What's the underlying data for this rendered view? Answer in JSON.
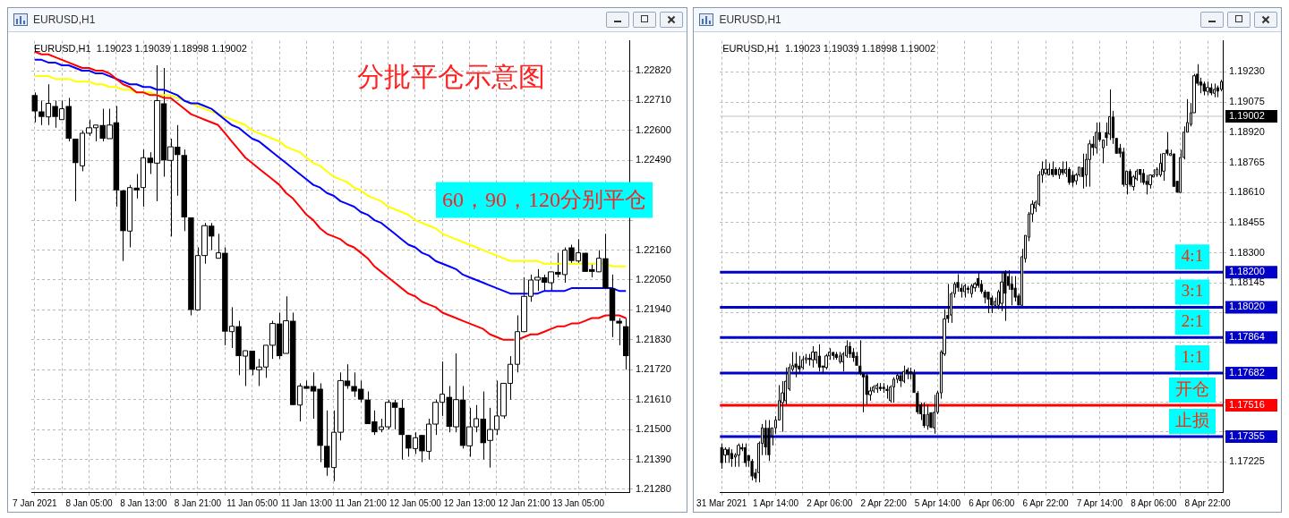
{
  "chart_data": [
    {
      "type": "candlestick",
      "title": "EURUSD,H1",
      "categories": [
        "7 Jan 2021",
        null,
        null,
        null,
        null,
        null,
        null,
        null,
        "8 Jan 05:00",
        null,
        null,
        null,
        null,
        null,
        null,
        null,
        "8 Jan 13:00",
        null,
        null,
        null,
        null,
        null,
        null,
        null,
        "8 Jan 21:00",
        null,
        null,
        null,
        null,
        null,
        null,
        null,
        "11 Jan 05:00",
        null,
        null,
        null,
        null,
        null,
        null,
        null,
        "11 Jan 13:00",
        null,
        null,
        null,
        null,
        null,
        null,
        null,
        "11 Jan 21:00",
        null,
        null,
        null,
        null,
        null,
        null,
        null,
        "12 Jan 05:00",
        null,
        null,
        null,
        null,
        null,
        null,
        null,
        "12 Jan 13:00",
        null,
        null,
        null,
        null,
        null,
        null,
        null,
        "12 Jan 21:00",
        null,
        null,
        null,
        null,
        null,
        null,
        null,
        "13 Jan 05:00",
        null,
        null,
        null,
        null,
        null,
        null,
        null
      ],
      "ohlc": [
        [
          1.2273,
          1.2274,
          1.2263,
          1.2267
        ],
        [
          1.2267,
          1.2271,
          1.2262,
          1.2265
        ],
        [
          1.2265,
          1.2277,
          1.2262,
          1.227
        ],
        [
          1.2269,
          1.2271,
          1.2261,
          1.2265
        ],
        [
          1.2264,
          1.2271,
          1.2264,
          1.2268
        ],
        [
          1.2269,
          1.2272,
          1.2256,
          1.2257
        ],
        [
          1.2257,
          1.2257,
          1.2234,
          1.2248
        ],
        [
          1.2247,
          1.226,
          1.2245,
          1.2259
        ],
        [
          1.2259,
          1.2264,
          1.2258,
          1.2261
        ],
        [
          1.2261,
          1.2262,
          1.2256,
          1.2262
        ],
        [
          1.2262,
          1.2268,
          1.2256,
          1.2257
        ],
        [
          1.2257,
          1.2268,
          1.2257,
          1.2262
        ],
        [
          1.2263,
          1.2269,
          1.2232,
          1.2238
        ],
        [
          1.2238,
          1.2238,
          1.2212,
          1.2223
        ],
        [
          1.2223,
          1.224,
          1.2217,
          1.2239
        ],
        [
          1.2239,
          1.2244,
          1.2235,
          1.2238
        ],
        [
          1.2239,
          1.2253,
          1.2232,
          1.225
        ],
        [
          1.225,
          1.2252,
          1.2244,
          1.2248
        ],
        [
          1.2248,
          1.2284,
          1.2234,
          1.2271
        ],
        [
          1.227,
          1.2283,
          1.2243,
          1.2249
        ],
        [
          1.2249,
          1.2257,
          1.2221,
          1.2254
        ],
        [
          1.2254,
          1.2262,
          1.2236,
          1.2251
        ],
        [
          1.2251,
          1.2253,
          1.2223,
          1.2228
        ],
        [
          1.2228,
          1.2228,
          1.2192,
          1.2194
        ],
        [
          1.2194,
          1.2217,
          1.2194,
          1.2214
        ],
        [
          1.2214,
          1.2226,
          1.2211,
          1.2225
        ],
        [
          1.2225,
          1.2226,
          1.2216,
          1.2221
        ],
        [
          1.2213,
          1.2222,
          1.2213,
          1.2215
        ],
        [
          1.2215,
          1.2217,
          1.2181,
          1.2186
        ],
        [
          1.2186,
          1.2195,
          1.218,
          1.2188
        ],
        [
          1.2188,
          1.219,
          1.217,
          1.2177
        ],
        [
          1.2177,
          1.2179,
          1.2166,
          1.2179
        ],
        [
          1.2179,
          1.2179,
          1.217,
          1.2172
        ],
        [
          1.2172,
          1.2176,
          1.2166,
          1.2173
        ],
        [
          1.2173,
          1.2181,
          1.2169,
          1.2181
        ],
        [
          1.2181,
          1.219,
          1.2176,
          1.2189
        ],
        [
          1.2189,
          1.2193,
          1.2176,
          1.2177
        ],
        [
          1.2178,
          1.2199,
          1.2178,
          1.219
        ],
        [
          1.219,
          1.2193,
          1.2159,
          1.2159
        ],
        [
          1.2159,
          1.2167,
          1.2153,
          1.2166
        ],
        [
          1.2166,
          1.2168,
          1.2165,
          1.2165
        ],
        [
          1.2166,
          1.2171,
          1.2154,
          1.2164
        ],
        [
          1.2165,
          1.2167,
          1.2138,
          1.2144
        ],
        [
          1.2144,
          1.2157,
          1.2133,
          1.2136
        ],
        [
          1.2136,
          1.2157,
          1.2131,
          1.2149
        ],
        [
          1.2149,
          1.2171,
          1.2146,
          1.2168
        ],
        [
          1.2168,
          1.2174,
          1.2165,
          1.2166
        ],
        [
          1.2166,
          1.2171,
          1.2162,
          1.2164
        ],
        [
          1.2165,
          1.2168,
          1.216,
          1.2161
        ],
        [
          1.2161,
          1.2164,
          1.2152,
          1.2152
        ],
        [
          1.2153,
          1.2157,
          1.2148,
          1.2149
        ],
        [
          1.215,
          1.2154,
          1.2149,
          1.2151
        ],
        [
          1.2151,
          1.2161,
          1.215,
          1.216
        ],
        [
          1.216,
          1.2161,
          1.215,
          1.2158
        ],
        [
          1.2158,
          1.2161,
          1.2139,
          1.2148
        ],
        [
          1.2148,
          1.2148,
          1.214,
          1.2143
        ],
        [
          1.2143,
          1.2149,
          1.2141,
          1.2147
        ],
        [
          1.2148,
          1.2148,
          1.2138,
          1.2142
        ],
        [
          1.2142,
          1.2154,
          1.2139,
          1.2152
        ],
        [
          1.2152,
          1.2161,
          1.2148,
          1.216
        ],
        [
          1.216,
          1.2175,
          1.2155,
          1.2163
        ],
        [
          1.2162,
          1.2166,
          1.2149,
          1.2151
        ],
        [
          1.2151,
          1.2178,
          1.2149,
          1.2161
        ],
        [
          1.2161,
          1.2166,
          1.2143,
          1.2144
        ],
        [
          1.2144,
          1.2158,
          1.214,
          1.2151
        ],
        [
          1.2151,
          1.2159,
          1.2149,
          1.2154
        ],
        [
          1.2154,
          1.2164,
          1.2139,
          1.2145
        ],
        [
          1.2146,
          1.2158,
          1.2136,
          1.215
        ],
        [
          1.215,
          1.2168,
          1.2148,
          1.2155
        ],
        [
          1.2155,
          1.2167,
          1.2154,
          1.2167
        ],
        [
          1.2167,
          1.2177,
          1.2161,
          1.2174
        ],
        [
          1.2174,
          1.2192,
          1.2171,
          1.2186
        ],
        [
          1.2186,
          1.2206,
          1.2186,
          1.2199
        ],
        [
          1.2199,
          1.2207,
          1.2197,
          1.2205
        ],
        [
          1.2205,
          1.2209,
          1.2201,
          1.2206
        ],
        [
          1.2206,
          1.2207,
          1.2201,
          1.2204
        ],
        [
          1.2204,
          1.2208,
          1.2201,
          1.2208
        ],
        [
          1.2208,
          1.2215,
          1.2206,
          1.2207
        ],
        [
          1.2207,
          1.2217,
          1.2204,
          1.2216
        ],
        [
          1.2217,
          1.2218,
          1.2211,
          1.2212
        ],
        [
          1.2212,
          1.222,
          1.2211,
          1.2215
        ],
        [
          1.2215,
          1.2215,
          1.2208,
          1.2208
        ],
        [
          1.2209,
          1.2211,
          1.2206,
          1.2208
        ],
        [
          1.2208,
          1.2216,
          1.2208,
          1.2213
        ],
        [
          1.2213,
          1.2222,
          1.2202,
          1.2202
        ],
        [
          1.2202,
          1.2207,
          1.2184,
          1.219
        ],
        [
          1.219,
          1.2191,
          1.2181,
          1.2189
        ],
        [
          1.2188,
          1.2191,
          1.2172,
          1.2177
        ]
      ],
      "series": [
        {
          "type": "line",
          "color": "#ff0000",
          "values": [
            1.2289,
            1.2288,
            1.2288,
            1.2287,
            1.2286,
            1.2285,
            1.2284,
            1.2283,
            1.2283,
            1.2282,
            1.2282,
            1.2281,
            1.2279,
            1.2277,
            1.2276,
            1.2274,
            1.2274,
            1.2273,
            1.2273,
            1.2272,
            1.2272,
            1.227,
            1.2268,
            1.2266,
            1.2265,
            1.2264,
            1.2263,
            1.2262,
            1.2259,
            1.2256,
            1.2253,
            1.225,
            1.2248,
            1.2246,
            1.2244,
            1.2242,
            1.224,
            1.2237,
            1.2235,
            1.2232,
            1.2229,
            1.2227,
            1.2224,
            1.2222,
            1.2221,
            1.222,
            1.2218,
            1.2217,
            1.2215,
            1.2213,
            1.221,
            1.2208,
            1.2206,
            1.2204,
            1.2202,
            1.22,
            1.2199,
            1.2197,
            1.2196,
            1.2195,
            1.2193,
            1.2192,
            1.2191,
            1.219,
            1.2189,
            1.2188,
            1.2187,
            1.2185,
            1.2184,
            1.2183,
            1.2183,
            1.2183,
            1.2184,
            1.2185,
            1.2185,
            1.2186,
            1.2187,
            1.2188,
            1.2188,
            1.2189,
            1.2189,
            1.219,
            1.2191,
            1.2191,
            1.2192,
            1.2192,
            1.2192,
            1.2191
          ]
        },
        {
          "type": "line",
          "color": "#0000ff",
          "values": [
            1.2286,
            1.2286,
            1.2285,
            1.2285,
            1.2284,
            1.2284,
            1.2283,
            1.2282,
            1.2282,
            1.2281,
            1.2281,
            1.228,
            1.2279,
            1.2278,
            1.2277,
            1.2277,
            1.2276,
            1.2276,
            1.2275,
            1.2275,
            1.2274,
            1.2273,
            1.2271,
            1.227,
            1.227,
            1.2269,
            1.2268,
            1.2266,
            1.2264,
            1.2262,
            1.2261,
            1.2259,
            1.2257,
            1.2256,
            1.2254,
            1.2252,
            1.225,
            1.2248,
            1.2246,
            1.2244,
            1.2242,
            1.224,
            1.2239,
            1.2237,
            1.2236,
            1.2234,
            1.2233,
            1.2232,
            1.223,
            1.2229,
            1.2227,
            1.2226,
            1.2224,
            1.2222,
            1.222,
            1.2218,
            1.2217,
            1.2215,
            1.2214,
            1.2212,
            1.2211,
            1.221,
            1.2209,
            1.2207,
            1.2206,
            1.2205,
            1.2204,
            1.2203,
            1.2202,
            1.2201,
            1.22,
            1.22,
            1.22,
            1.22,
            1.22,
            1.2201,
            1.2201,
            1.2201,
            1.2201,
            1.2202,
            1.2202,
            1.2202,
            1.2202,
            1.2202,
            1.2202,
            1.2202,
            1.2201,
            1.2201
          ]
        },
        {
          "type": "line",
          "color": "#ffff00",
          "values": [
            1.228,
            1.228,
            1.228,
            1.2279,
            1.2279,
            1.2279,
            1.2278,
            1.2278,
            1.2278,
            1.2277,
            1.2277,
            1.2276,
            1.2276,
            1.2275,
            1.2275,
            1.2274,
            1.2274,
            1.2274,
            1.2273,
            1.2273,
            1.2273,
            1.2272,
            1.2271,
            1.227,
            1.2269,
            1.2268,
            1.2267,
            1.2266,
            1.2265,
            1.2264,
            1.2263,
            1.2262,
            1.226,
            1.2259,
            1.2258,
            1.2257,
            1.2256,
            1.2254,
            1.2253,
            1.2252,
            1.225,
            1.2248,
            1.2247,
            1.2245,
            1.2243,
            1.2242,
            1.2241,
            1.2239,
            1.2238,
            1.2236,
            1.2235,
            1.2234,
            1.2232,
            1.2231,
            1.223,
            1.2229,
            1.2227,
            1.2226,
            1.2225,
            1.2224,
            1.2222,
            1.2221,
            1.222,
            1.2219,
            1.2218,
            1.2217,
            1.2216,
            1.2215,
            1.2214,
            1.2213,
            1.2212,
            1.2212,
            1.2212,
            1.2212,
            1.2212,
            1.2211,
            1.2211,
            1.2211,
            1.2211,
            1.2211,
            1.2211,
            1.2211,
            1.2211,
            1.2211,
            1.2211,
            1.221,
            1.221,
            1.221
          ]
        }
      ],
      "ylim": [
        1.2127,
        1.2293
      ],
      "yticks": [
        {
          "value": 1.2282,
          "label": "1.22820"
        },
        {
          "value": 1.2271,
          "label": "1.22710"
        },
        {
          "value": 1.226,
          "label": "1.22600"
        },
        {
          "value": 1.2249,
          "label": "1.22490"
        },
        {
          "value": 1.2238,
          "label": null
        },
        {
          "value": 1.2227,
          "label": null
        },
        {
          "value": 1.2216,
          "label": "1.22160"
        },
        {
          "value": 1.2205,
          "label": "1.22050"
        },
        {
          "value": 1.2194,
          "label": "1.21940"
        },
        {
          "value": 1.2183,
          "label": "1.21830"
        },
        {
          "value": 1.2172,
          "label": "1.21720"
        },
        {
          "value": 1.2161,
          "label": "1.21610"
        },
        {
          "value": 1.215,
          "label": "1.21500"
        },
        {
          "value": 1.2139,
          "label": "1.21390"
        },
        {
          "value": 1.2128,
          "label": "1.21280"
        }
      ],
      "grid": true,
      "annotations": [
        "EURUSD,H1  1.19023 1.19039 1.18998 1.19002",
        "分批平仓示意图",
        "60，90，120分别平仓"
      ]
    },
    {
      "type": "candlestick",
      "title": "EURUSD,H1",
      "categories": [
        "31 Mar 2021",
        null,
        null,
        null,
        null,
        null,
        null,
        null,
        null,
        null,
        null,
        null,
        null,
        null,
        null,
        null,
        "1 Apr 14:00",
        null,
        null,
        null,
        null,
        null,
        null,
        null,
        null,
        null,
        null,
        null,
        null,
        null,
        null,
        null,
        "2 Apr 06:00",
        null,
        null,
        null,
        null,
        null,
        null,
        null,
        null,
        null,
        null,
        null,
        null,
        null,
        null,
        null,
        "2 Apr 22:00",
        null,
        null,
        null,
        null,
        null,
        null,
        null,
        null,
        null,
        null,
        null,
        null,
        null,
        null,
        null,
        "5 Apr 14:00",
        null,
        null,
        null,
        null,
        null,
        null,
        null,
        null,
        null,
        null,
        null,
        null,
        null,
        null,
        null,
        "6 Apr 06:00",
        null,
        null,
        null,
        null,
        null,
        null,
        null,
        null,
        null,
        null,
        null,
        null,
        null,
        null,
        null,
        "6 Apr 22:00",
        null,
        null,
        null,
        null,
        null,
        null,
        null,
        null,
        null,
        null,
        null,
        null,
        null,
        null,
        null,
        "7 Apr 14:00",
        null,
        null,
        null,
        null,
        null,
        null,
        null,
        null,
        null,
        null,
        null,
        null,
        null,
        null,
        null,
        "8 Apr 06:00",
        null,
        null,
        null,
        null,
        null,
        null,
        null,
        null,
        null,
        null,
        null,
        null,
        null,
        null,
        null,
        "8 Apr 22:00",
        null,
        null,
        null,
        null
      ],
      "ohlc": [
        [
          1.173,
          1.1732,
          1.1719,
          1.1722
        ],
        [
          1.1726,
          1.173,
          1.1722,
          1.1729
        ],
        [
          1.1729,
          1.173,
          1.1722,
          1.1726
        ],
        [
          1.1727,
          1.1729,
          1.172,
          1.1724
        ],
        [
          1.1725,
          1.1727,
          1.172,
          1.1726
        ],
        [
          1.1726,
          1.1732,
          1.172,
          1.1731
        ],
        [
          1.173,
          1.1732,
          1.1728,
          1.1729
        ],
        [
          1.173,
          1.1732,
          1.172,
          1.1722
        ],
        [
          1.1726,
          1.1726,
          1.172,
          1.1723
        ],
        [
          1.1723,
          1.1724,
          1.1713,
          1.1715
        ],
        [
          1.1717,
          1.1719,
          1.1712,
          1.1714
        ],
        [
          1.1717,
          1.1733,
          1.1712,
          1.1732
        ],
        [
          1.1732,
          1.1742,
          1.1726,
          1.174
        ],
        [
          1.174,
          1.1744,
          1.1726,
          1.173
        ],
        [
          1.174,
          1.1744,
          1.1723,
          1.1726
        ],
        [
          1.1736,
          1.174,
          1.1731,
          1.174
        ],
        [
          1.174,
          1.1746,
          1.1737,
          1.1744
        ],
        [
          1.1744,
          1.1762,
          1.1744,
          1.1754
        ],
        [
          1.1753,
          1.1764,
          1.1738,
          1.1758
        ],
        [
          1.1754,
          1.1771,
          1.1752,
          1.1764
        ],
        [
          1.176,
          1.1773,
          1.1759,
          1.1771
        ],
        [
          1.177,
          1.1779,
          1.1769,
          1.1772
        ],
        [
          1.1773,
          1.1779,
          1.1766,
          1.1771
        ],
        [
          1.1772,
          1.1777,
          1.1768,
          1.177
        ],
        [
          1.1771,
          1.1777,
          1.177,
          1.1775
        ],
        [
          1.1775,
          1.1778,
          1.1773,
          1.1776
        ],
        [
          1.1776,
          1.1778,
          1.1772,
          1.1775
        ],
        [
          1.1775,
          1.1782,
          1.1771,
          1.1779
        ],
        [
          1.1775,
          1.1779,
          1.1773,
          1.1779
        ],
        [
          1.1777,
          1.1783,
          1.1769,
          1.1771
        ],
        [
          1.1772,
          1.1772,
          1.1768,
          1.1771
        ],
        [
          1.1771,
          1.1778,
          1.177,
          1.1777
        ],
        [
          1.1777,
          1.1781,
          1.1775,
          1.1779
        ],
        [
          1.1779,
          1.1779,
          1.1775,
          1.1777
        ],
        [
          1.1778,
          1.1779,
          1.1775,
          1.1776
        ],
        [
          1.1774,
          1.1779,
          1.1773,
          1.1777
        ],
        [
          1.1774,
          1.1779,
          1.1769,
          1.1778
        ],
        [
          1.1777,
          1.1785,
          1.1776,
          1.1782
        ],
        [
          1.1782,
          1.1784,
          1.1776,
          1.1778
        ],
        [
          1.1779,
          1.1781,
          1.1774,
          1.1776
        ],
        [
          1.1777,
          1.1779,
          1.1772,
          1.1772
        ],
        [
          1.1772,
          1.1785,
          1.1767,
          1.1768
        ],
        [
          1.1768,
          1.1768,
          1.1748,
          1.1766
        ],
        [
          1.1767,
          1.1768,
          1.1752,
          1.1757
        ],
        [
          1.1757,
          1.1761,
          1.1754,
          1.1759
        ],
        [
          1.1759,
          1.1762,
          1.1758,
          1.1761
        ],
        [
          1.176,
          1.1763,
          1.1758,
          1.1762
        ],
        [
          1.1761,
          1.1763,
          1.1759,
          1.176
        ],
        [
          1.1761,
          1.1763,
          1.1758,
          1.176
        ],
        [
          1.176,
          1.1762,
          1.1755,
          1.1759
        ],
        [
          1.1754,
          1.1762,
          1.1753,
          1.1761
        ],
        [
          1.1761,
          1.1766,
          1.1753,
          1.1765
        ],
        [
          1.1765,
          1.1768,
          1.1763,
          1.1767
        ],
        [
          1.1767,
          1.1768,
          1.1761,
          1.1764
        ],
        [
          1.1764,
          1.1772,
          1.1763,
          1.1769
        ],
        [
          1.177,
          1.1771,
          1.1765,
          1.1768
        ],
        [
          1.1769,
          1.1771,
          1.1765,
          1.1768
        ],
        [
          1.1768,
          1.177,
          1.1758,
          1.1758
        ],
        [
          1.1758,
          1.1759,
          1.1747,
          1.1748
        ],
        [
          1.1752,
          1.1753,
          1.1744,
          1.1747
        ],
        [
          1.1747,
          1.1753,
          1.174,
          1.1741
        ],
        [
          1.1741,
          1.1752,
          1.1739,
          1.1747
        ],
        [
          1.1748,
          1.1748,
          1.174,
          1.174
        ],
        [
          1.174,
          1.1757,
          1.1737,
          1.1748
        ],
        [
          1.1748,
          1.1759,
          1.1747,
          1.1758
        ],
        [
          1.1758,
          1.178,
          1.1755,
          1.1779
        ],
        [
          1.1778,
          1.1801,
          1.1777,
          1.1796
        ],
        [
          1.1798,
          1.1814,
          1.1794,
          1.1796
        ],
        [
          1.1798,
          1.181,
          1.1794,
          1.1809
        ],
        [
          1.1809,
          1.1815,
          1.1807,
          1.1814
        ],
        [
          1.1815,
          1.1819,
          1.181,
          1.1812
        ],
        [
          1.1812,
          1.1814,
          1.1807,
          1.181
        ],
        [
          1.181,
          1.1814,
          1.1807,
          1.1813
        ],
        [
          1.1812,
          1.1813,
          1.1809,
          1.1811
        ],
        [
          1.1809,
          1.1814,
          1.1807,
          1.1813
        ],
        [
          1.1812,
          1.1815,
          1.181,
          1.1814
        ],
        [
          1.1817,
          1.182,
          1.1812,
          1.1813
        ],
        [
          1.1814,
          1.1816,
          1.1809,
          1.181
        ],
        [
          1.181,
          1.1811,
          1.1804,
          1.1807
        ],
        [
          1.181,
          1.181,
          1.1799,
          1.1806
        ],
        [
          1.1807,
          1.1808,
          1.1799,
          1.1803
        ],
        [
          1.1803,
          1.1807,
          1.1802,
          1.1805
        ],
        [
          1.1803,
          1.1811,
          1.1801,
          1.181
        ],
        [
          1.1804,
          1.182,
          1.18,
          1.1815
        ],
        [
          1.182,
          1.1821,
          1.1795,
          1.1809
        ],
        [
          1.1818,
          1.1821,
          1.1811,
          1.1813
        ],
        [
          1.1814,
          1.1818,
          1.1803,
          1.1811
        ],
        [
          1.1812,
          1.1818,
          1.1805,
          1.1807
        ],
        [
          1.1808,
          1.1809,
          1.1803,
          1.1803
        ],
        [
          1.1803,
          1.1832,
          1.1803,
          1.1828
        ],
        [
          1.1827,
          1.1839,
          1.1825,
          1.1839
        ],
        [
          1.1838,
          1.1851,
          1.1836,
          1.185
        ],
        [
          1.185,
          1.1857,
          1.1846,
          1.1855
        ],
        [
          1.1853,
          1.1857,
          1.1851,
          1.1856
        ],
        [
          1.1855,
          1.1872,
          1.1854,
          1.187
        ],
        [
          1.187,
          1.1877,
          1.1866,
          1.1873
        ],
        [
          1.1871,
          1.1878,
          1.187,
          1.1873
        ],
        [
          1.187,
          1.1876,
          1.187,
          1.1873
        ],
        [
          1.1873,
          1.1877,
          1.1869,
          1.187
        ],
        [
          1.1873,
          1.1874,
          1.187,
          1.187
        ],
        [
          1.187,
          1.1874,
          1.1868,
          1.1873
        ],
        [
          1.1873,
          1.1877,
          1.187,
          1.1871
        ],
        [
          1.1871,
          1.1877,
          1.1869,
          1.1873
        ],
        [
          1.1873,
          1.1874,
          1.1865,
          1.1866
        ],
        [
          1.187,
          1.1872,
          1.1864,
          1.1866
        ],
        [
          1.1867,
          1.1871,
          1.1865,
          1.187
        ],
        [
          1.187,
          1.1874,
          1.1869,
          1.1874
        ],
        [
          1.1874,
          1.1881,
          1.1863,
          1.1869
        ],
        [
          1.187,
          1.1881,
          1.1864,
          1.1878
        ],
        [
          1.1878,
          1.1888,
          1.1864,
          1.1886
        ],
        [
          1.1886,
          1.189,
          1.188,
          1.1884
        ],
        [
          1.1884,
          1.1897,
          1.1881,
          1.1892
        ],
        [
          1.1892,
          1.1897,
          1.1887,
          1.1888
        ],
        [
          1.1884,
          1.1888,
          1.1876,
          1.1888
        ],
        [
          1.1892,
          1.1897,
          1.1885,
          1.1889
        ],
        [
          1.1891,
          1.1914,
          1.1888,
          1.19
        ],
        [
          1.19,
          1.1903,
          1.1886,
          1.1889
        ],
        [
          1.1889,
          1.1889,
          1.1881,
          1.1881
        ],
        [
          1.1884,
          1.1886,
          1.1879,
          1.1881
        ],
        [
          1.1882,
          1.1884,
          1.1864,
          1.1865
        ],
        [
          1.1865,
          1.1872,
          1.186,
          1.1872
        ],
        [
          1.1872,
          1.1873,
          1.1864,
          1.1865
        ],
        [
          1.1864,
          1.187,
          1.1862,
          1.1869
        ],
        [
          1.1868,
          1.1873,
          1.1867,
          1.1872
        ],
        [
          1.1873,
          1.1873,
          1.1866,
          1.187
        ],
        [
          1.1871,
          1.1873,
          1.1865,
          1.1866
        ],
        [
          1.1867,
          1.187,
          1.186,
          1.1865
        ],
        [
          1.1865,
          1.187,
          1.1863,
          1.187
        ],
        [
          1.1869,
          1.1873,
          1.1869,
          1.187
        ],
        [
          1.187,
          1.1874,
          1.1869,
          1.1873
        ],
        [
          1.187,
          1.1881,
          1.1869,
          1.1876
        ],
        [
          1.1872,
          1.1881,
          1.1867,
          1.1881
        ],
        [
          1.1883,
          1.1892,
          1.188,
          1.1881
        ],
        [
          1.188,
          1.1883,
          1.188,
          1.1881
        ],
        [
          1.1881,
          1.1881,
          1.1864,
          1.1864
        ],
        [
          1.1867,
          1.1867,
          1.1861,
          1.1861
        ],
        [
          1.1861,
          1.1883,
          1.1861,
          1.1879
        ],
        [
          1.1879,
          1.1895,
          1.1878,
          1.1892
        ],
        [
          1.1892,
          1.1909,
          1.1892,
          1.1897
        ],
        [
          1.1896,
          1.1907,
          1.1895,
          1.1902
        ],
        [
          1.1902,
          1.1922,
          1.1902,
          1.1921
        ],
        [
          1.1922,
          1.1927,
          1.1916,
          1.1917
        ],
        [
          1.1918,
          1.192,
          1.1912,
          1.1916
        ],
        [
          1.1917,
          1.1918,
          1.1911,
          1.1913
        ],
        [
          1.1913,
          1.1918,
          1.1911,
          1.1915
        ],
        [
          1.1915,
          1.1917,
          1.1911,
          1.1912
        ],
        [
          1.1912,
          1.1917,
          1.191,
          1.1914
        ],
        [
          1.1915,
          1.1916,
          1.191,
          1.1913
        ],
        [
          1.1914,
          1.1919,
          1.1913,
          1.1918
        ]
      ],
      "ylim": [
        1.1707,
        1.1939
      ],
      "yticks": [
        {
          "value": 1.1923,
          "label": "1.19230"
        },
        {
          "value": 1.19075,
          "label": "1.19075"
        },
        {
          "value": 1.1892,
          "label": "1.18920"
        },
        {
          "value": 1.18765,
          "label": "1.18765"
        },
        {
          "value": 1.1861,
          "label": "1.18610"
        },
        {
          "value": 1.18455,
          "label": "1.18455"
        },
        {
          "value": 1.183,
          "label": "1.18300"
        },
        {
          "value": 1.18145,
          "label": "1.18145"
        },
        {
          "value": 1.1799,
          "label": null
        },
        {
          "value": 1.1784,
          "label": null
        },
        {
          "value": 1.1768,
          "label": null
        },
        {
          "value": 1.1753,
          "label": null
        },
        {
          "value": 1.1738,
          "label": null
        },
        {
          "value": 1.17225,
          "label": "1.17225"
        }
      ],
      "grid": true,
      "ref_lines": [
        {
          "axis": "y",
          "value": 1.19002,
          "color": "#c0c0c0"
        },
        {
          "axis": "y",
          "value": 1.182,
          "label": "4:1",
          "color": "#0000c8"
        },
        {
          "axis": "y",
          "value": 1.1802,
          "label": "3:1",
          "color": "#0000c8"
        },
        {
          "axis": "y",
          "value": 1.17864,
          "label": "2:1",
          "color": "#0000c8"
        },
        {
          "axis": "y",
          "value": 1.17682,
          "label": "1:1",
          "color": "#0000c8"
        },
        {
          "axis": "y",
          "value": 1.17516,
          "label": "开仓",
          "color": "#ff0000"
        },
        {
          "axis": "y",
          "value": 1.17355,
          "label": "止损",
          "color": "#0000c8"
        }
      ],
      "annotations": [
        "EURUSD,H1  1.19023 1.19039 1.18998 1.19002",
        "1.19002",
        "1.18200",
        "1.18020",
        "1.17864",
        "1.17682",
        "1.17516",
        "1.17355"
      ]
    }
  ]
}
